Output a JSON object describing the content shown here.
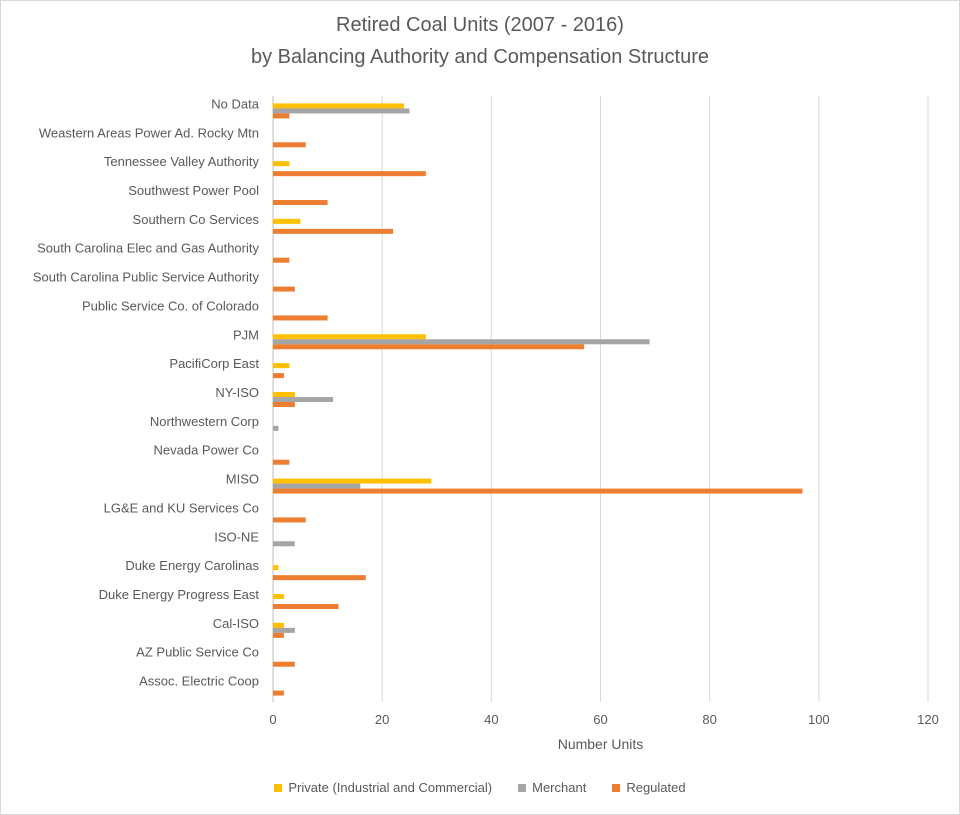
{
  "chart_data": {
    "type": "bar",
    "orientation": "horizontal",
    "title": "Retired Coal Units (2007 - 2016)",
    "subtitle": "by Balancing Authority and Compensation Structure",
    "xlabel": "Number Units",
    "ylabel": "",
    "xlim": [
      0,
      120
    ],
    "xticks": [
      0,
      20,
      40,
      60,
      80,
      100,
      120
    ],
    "grid": true,
    "legend_position": "bottom",
    "categories": [
      "No Data",
      "Weastern Areas Power Ad. Rocky Mtn",
      "Tennessee Valley Authority",
      "Southwest Power Pool",
      "Southern Co Services",
      "South Carolina Elec and Gas Authority",
      "South Carolina Public Service Authority",
      "Public Service Co. of Colorado",
      "PJM",
      "PacifiCorp East",
      "NY-ISO",
      "Northwestern Corp",
      "Nevada Power Co",
      "MISO",
      "LG&E and KU Services Co",
      "ISO-NE",
      "Duke Energy Carolinas",
      "Duke Energy Progress East",
      "Cal-ISO",
      "AZ Public Service Co",
      "Assoc. Electric Coop"
    ],
    "series": [
      {
        "name": "Private (Industrial and Commercial)",
        "color": "#ffc000",
        "values": [
          24,
          0,
          3,
          0,
          5,
          0,
          0,
          0,
          28,
          3,
          4,
          0,
          0,
          29,
          0,
          0,
          1,
          2,
          2,
          0,
          0
        ]
      },
      {
        "name": "Merchant",
        "color": "#a5a5a5",
        "values": [
          25,
          0,
          0,
          0,
          0,
          0,
          0,
          0,
          69,
          0,
          11,
          1,
          0,
          16,
          0,
          4,
          0,
          0,
          4,
          0,
          0
        ]
      },
      {
        "name": "Regulated",
        "color": "#ed7d31",
        "values": [
          3,
          6,
          28,
          10,
          22,
          3,
          4,
          10,
          57,
          2,
          4,
          0,
          3,
          97,
          6,
          0,
          17,
          12,
          2,
          4,
          2
        ]
      }
    ]
  }
}
